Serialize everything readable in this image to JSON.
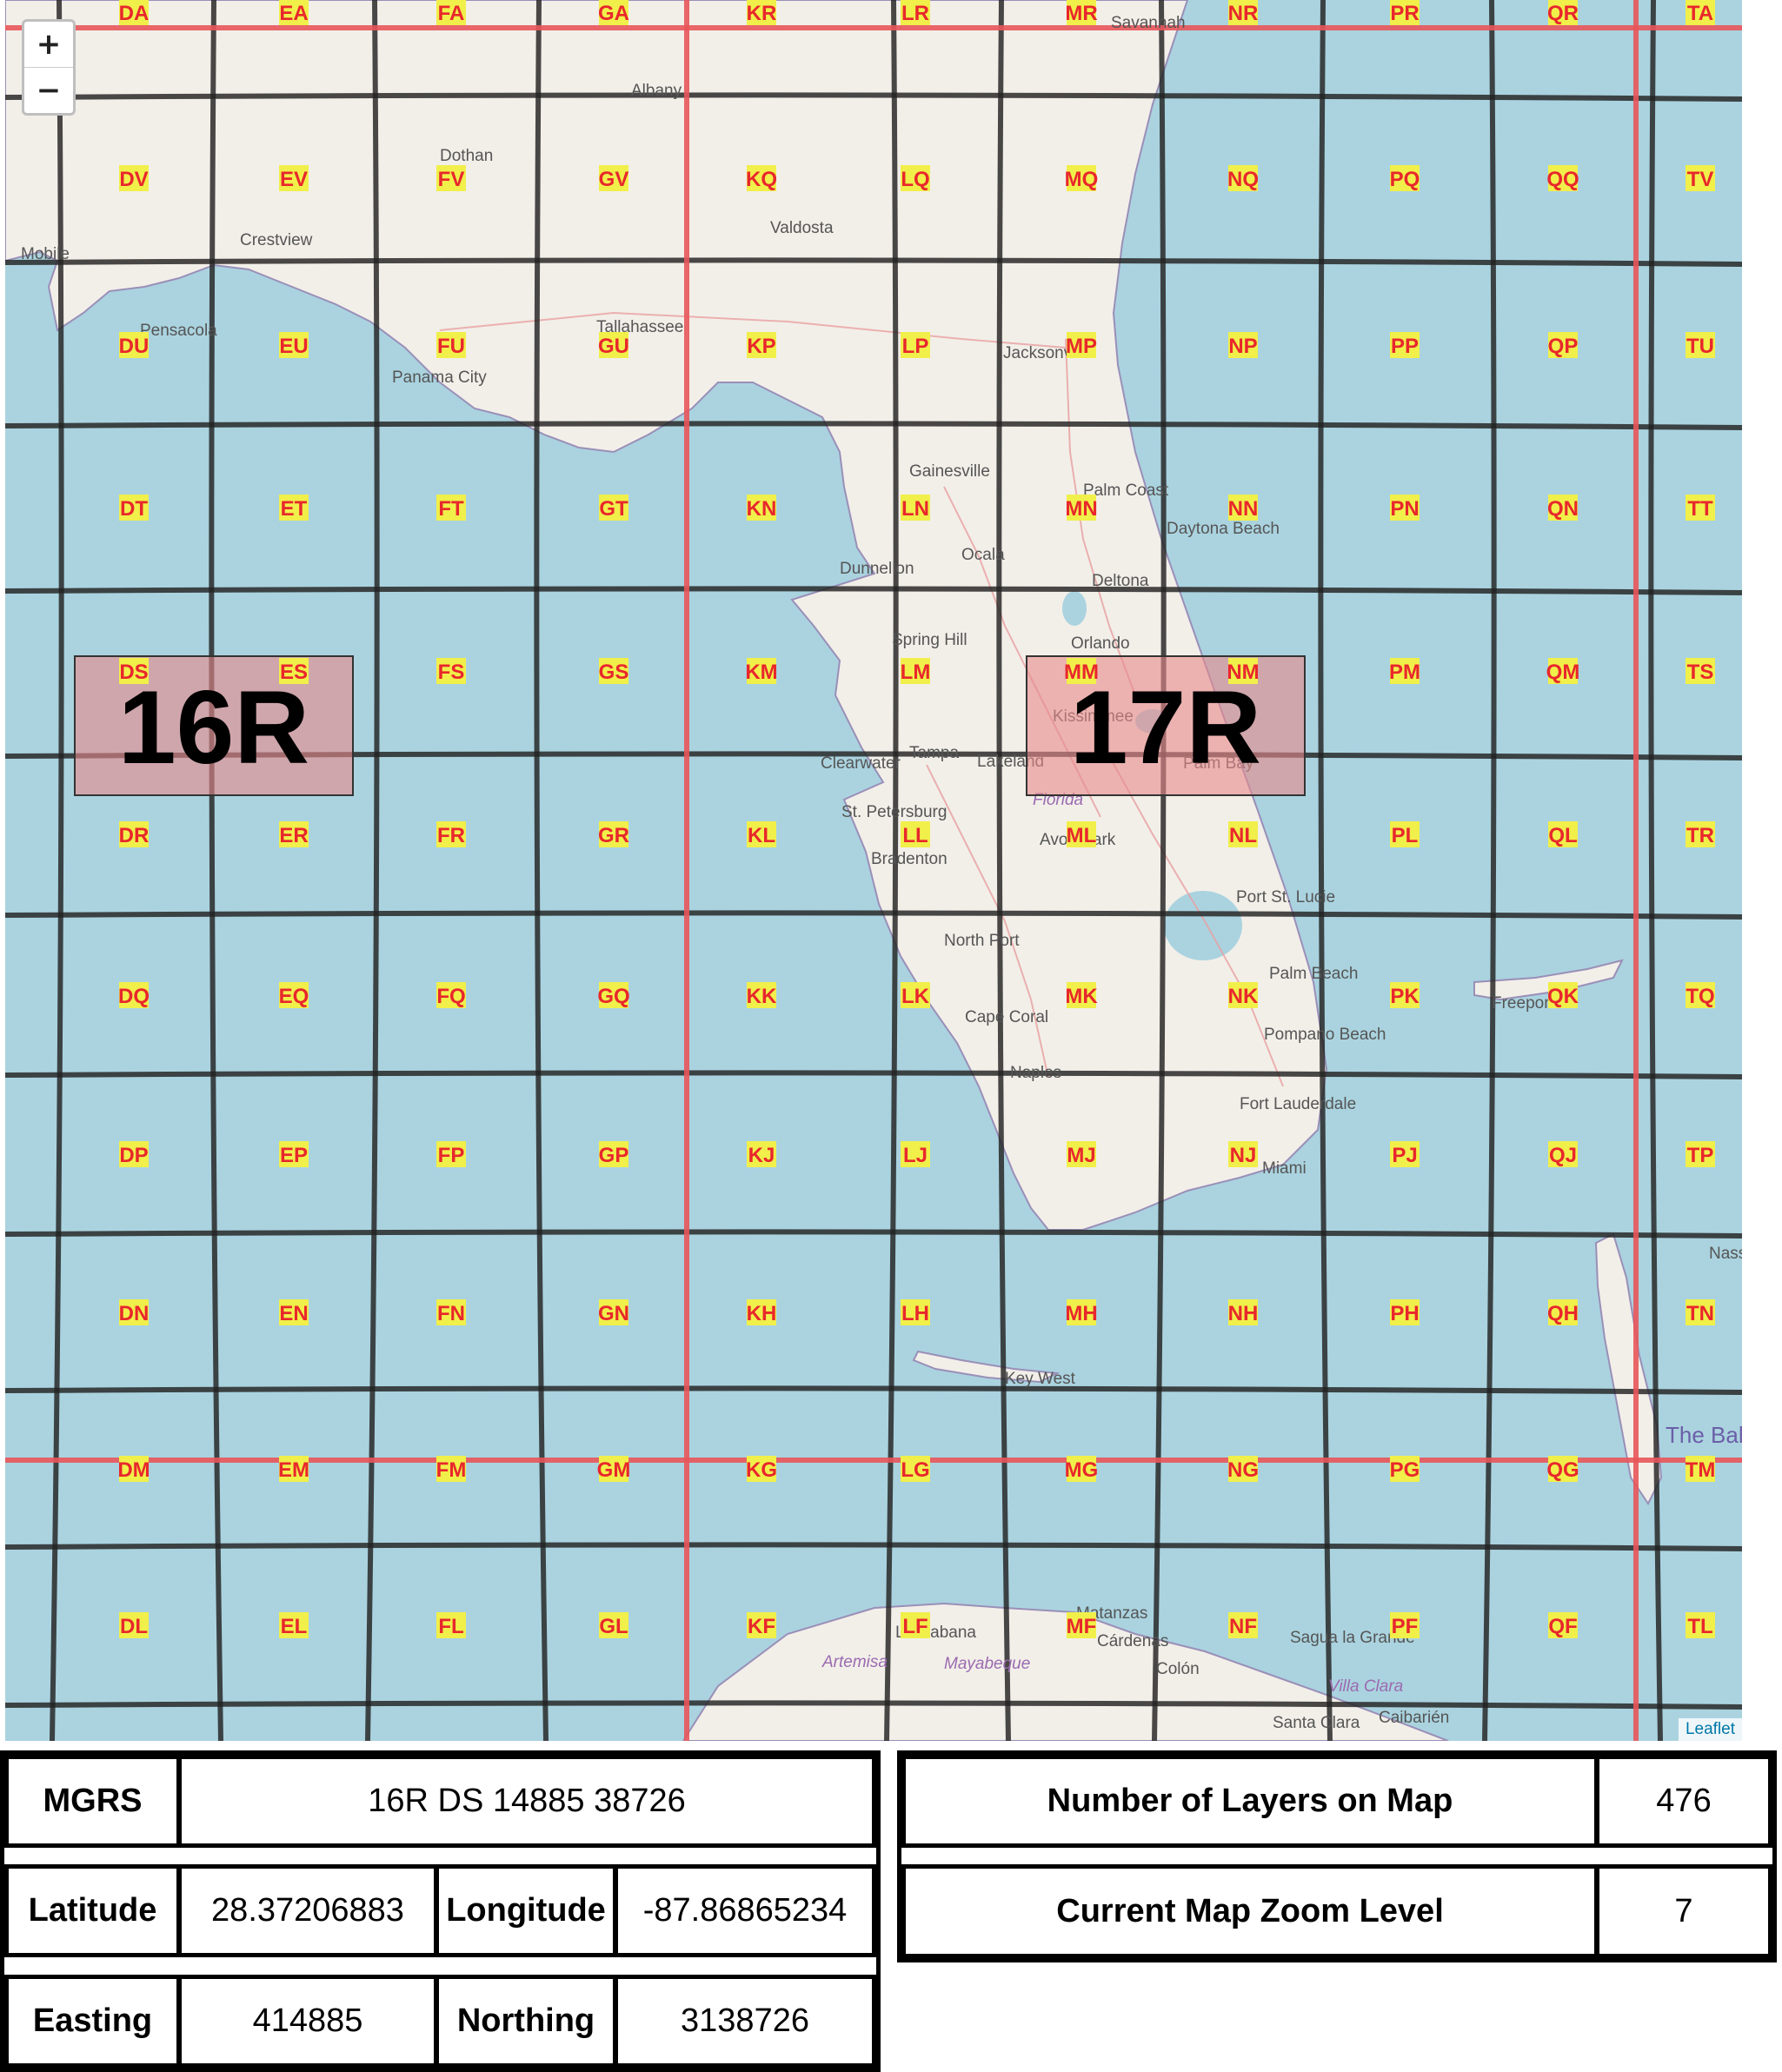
{
  "map": {
    "zoom_in": "+",
    "zoom_out": "−",
    "attribution": "Leaflet",
    "colors": {
      "water": "#aad3df",
      "land": "#f2efe9",
      "grid": "#222222",
      "zone_line": "#e8555a",
      "label_bg": "#f1ef4a",
      "label_text": "#e8272c"
    },
    "gzd_labels": [
      {
        "text": "16R"
      },
      {
        "text": "17R"
      }
    ],
    "grid_labels": [
      [
        "DA",
        "EA",
        "FA",
        "GA",
        "KR",
        "LR",
        "MR",
        "NR",
        "PR",
        "QR",
        "TA"
      ],
      [
        "DV",
        "EV",
        "FV",
        "GV",
        "KQ",
        "LQ",
        "MQ",
        "NQ",
        "PQ",
        "QQ",
        "TV"
      ],
      [
        "DU",
        "EU",
        "FU",
        "GU",
        "KP",
        "LP",
        "MP",
        "NP",
        "PP",
        "QP",
        "TU"
      ],
      [
        "DT",
        "ET",
        "FT",
        "GT",
        "KN",
        "LN",
        "MN",
        "NN",
        "PN",
        "QN",
        "TT"
      ],
      [
        "DS",
        "ES",
        "FS",
        "GS",
        "KM",
        "LM",
        "MM",
        "NM",
        "PM",
        "QM",
        "TS"
      ],
      [
        "DR",
        "ER",
        "FR",
        "GR",
        "KL",
        "LL",
        "ML",
        "NL",
        "PL",
        "QL",
        "TR"
      ],
      [
        "DQ",
        "EQ",
        "FQ",
        "GQ",
        "KK",
        "LK",
        "MK",
        "NK",
        "PK",
        "QK",
        "TQ"
      ],
      [
        "DP",
        "EP",
        "FP",
        "GP",
        "KJ",
        "LJ",
        "MJ",
        "NJ",
        "PJ",
        "QJ",
        "TP"
      ],
      [
        "DN",
        "EN",
        "FN",
        "GN",
        "KH",
        "LH",
        "MH",
        "NH",
        "PH",
        "QH",
        "TN"
      ],
      [
        "DM",
        "EM",
        "FM",
        "GM",
        "KG",
        "LG",
        "MG",
        "NG",
        "PG",
        "QG",
        "TM"
      ],
      [
        "DL",
        "EL",
        "FL",
        "GL",
        "KF",
        "LF",
        "MF",
        "NF",
        "PF",
        "QF",
        "TL"
      ]
    ],
    "places": [
      "Savannah",
      "Albany",
      "Dothan",
      "Valdosta",
      "Mobile",
      "Crestview",
      "Pensacola",
      "Tallahassee",
      "Panama City",
      "Jacksonville",
      "Gainesville",
      "Palm Coast",
      "Daytona Beach",
      "Ocala",
      "Dunnellon",
      "Deltona",
      "Spring Hill",
      "Orlando",
      "Kissimmee",
      "Tampa",
      "Clearwater",
      "Lakeland",
      "Palm Bay",
      "St. Petersburg",
      "Florida",
      "Bradenton",
      "Avon Park",
      "Port St. Lucie",
      "North Port",
      "Palm Beach",
      "Cape Coral",
      "Freeport",
      "Pompano Beach",
      "Naples",
      "Fort Lauderdale",
      "Miami",
      "Nassau",
      "Key West",
      "The Bahamas",
      "Matanzas",
      "La Habana",
      "Artemisa",
      "Mayabeque",
      "Cárdenas",
      "Colón",
      "Sagua la Grande",
      "Villa Clara",
      "Caibarién",
      "Santa Clara"
    ]
  },
  "info": {
    "mgrs_label": "MGRS",
    "mgrs_value": "16R DS 14885 38726",
    "latitude_label": "Latitude",
    "latitude_value": "28.37206883",
    "longitude_label": "Longitude",
    "longitude_value": "-87.86865234",
    "easting_label": "Easting",
    "easting_value": "414885",
    "northing_label": "Northing",
    "northing_value": "3138726",
    "layers_label": "Number of Layers on Map",
    "layers_value": "476",
    "zoom_label": "Current Map Zoom Level",
    "zoom_value": "7"
  }
}
